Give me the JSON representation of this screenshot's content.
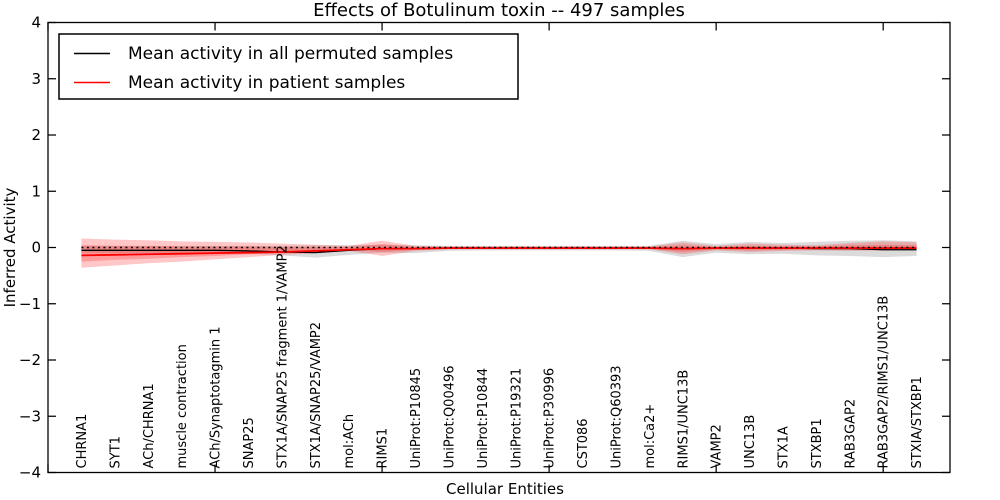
{
  "figure": {
    "background": "#ffffff"
  },
  "legend": {
    "items": [
      {
        "label": "Mean activity in all permuted samples",
        "color": "#000000"
      },
      {
        "label": "Mean activity in patient samples",
        "color": "#ff0000"
      }
    ]
  },
  "chart_data": {
    "type": "line",
    "title": "Effects of Botulinum toxin -- 497 samples",
    "xlabel": "Cellular Entities",
    "ylabel": "Inferred Activity",
    "ylim": [
      -4,
      4
    ],
    "grid": false,
    "legend_position": "upper left",
    "y_ticks": [
      4,
      3,
      2,
      1,
      0,
      -1,
      -2,
      -3,
      -4
    ],
    "y_tick_labels": [
      "4",
      "3",
      "2",
      "1",
      "0",
      "−1",
      "−2",
      "−3",
      "−4"
    ],
    "x_frame_tick_values": [
      0,
      5,
      10,
      15,
      20,
      25
    ],
    "x_axis_span": 27,
    "categories": [
      "CHRNA1",
      "SYT1",
      "ACh/CHRNA1",
      "muscle contraction",
      "ACh/Synaptotagmin 1",
      "SNAP25",
      "STX1A/SNAP25 fragment 1/VAMP2",
      "STX1A/SNAP25/VAMP2",
      "mol:ACh",
      "RIMS1",
      "UniProt:P10845",
      "UniProt:Q00496",
      "UniProt:P10844",
      "UniProt:P19321",
      "UniProt:P30996",
      "CST086",
      "UniProt:Q60393",
      "mol:Ca2+",
      "RIMS1/UNC13B",
      "VAMP2",
      "UNC13B",
      "STX1A",
      "STXBP1",
      "RAB3GAP2",
      "RAB3GAP2/RIMS1/UNC13B",
      "STXIA/STXBP1"
    ],
    "series": [
      {
        "name": "Mean activity in all permuted samples",
        "color": "#000000",
        "style": "solid",
        "width": 1.3,
        "values": [
          -0.05,
          -0.05,
          -0.05,
          -0.05,
          -0.05,
          -0.06,
          -0.08,
          -0.09,
          -0.05,
          -0.02,
          -0.02,
          -0.01,
          -0.01,
          -0.01,
          -0.01,
          -0.01,
          -0.01,
          -0.01,
          -0.02,
          -0.01,
          -0.01,
          -0.01,
          -0.02,
          -0.02,
          -0.04,
          -0.04
        ]
      },
      {
        "name": "Mean activity in patient samples",
        "color": "#ff0000",
        "style": "solid",
        "width": 1.8,
        "values": [
          -0.14,
          -0.13,
          -0.12,
          -0.11,
          -0.1,
          -0.09,
          -0.08,
          -0.06,
          -0.04,
          -0.02,
          -0.02,
          -0.01,
          -0.01,
          -0.01,
          -0.01,
          -0.01,
          -0.01,
          -0.01,
          -0.02,
          -0.01,
          -0.01,
          -0.01,
          -0.01,
          -0.01,
          -0.01,
          -0.01
        ]
      },
      {
        "name": "zero-reference",
        "color": "#000000",
        "style": "dotted",
        "width": 1.6,
        "y": 0
      }
    ],
    "bands": [
      {
        "name": "permuted-range",
        "color": "#888888",
        "opacity": 0.3,
        "hi": [
          0.03,
          0.03,
          0.03,
          0.03,
          0.03,
          0.03,
          0.03,
          0.04,
          0.04,
          0.05,
          0.04,
          0.03,
          0.03,
          0.03,
          0.03,
          0.03,
          0.03,
          0.03,
          0.12,
          0.06,
          0.1,
          0.08,
          0.1,
          0.12,
          0.13,
          0.11
        ],
        "lo": [
          -0.1,
          -0.1,
          -0.1,
          -0.1,
          -0.1,
          -0.11,
          -0.14,
          -0.18,
          -0.13,
          -0.09,
          -0.1,
          -0.06,
          -0.05,
          -0.05,
          -0.05,
          -0.05,
          -0.05,
          -0.06,
          -0.17,
          -0.09,
          -0.12,
          -0.11,
          -0.14,
          -0.15,
          -0.17,
          -0.15
        ]
      },
      {
        "name": "patient-range-outer",
        "color": "#ff0000",
        "opacity": 0.22,
        "hi": [
          0.16,
          0.14,
          0.13,
          0.11,
          0.1,
          0.09,
          0.07,
          0.05,
          0.03,
          0.12,
          0.03,
          0.02,
          0.02,
          0.02,
          0.02,
          0.02,
          0.02,
          0.02,
          0.09,
          0.03,
          0.07,
          0.05,
          0.04,
          0.08,
          0.11,
          0.09
        ],
        "lo": [
          -0.36,
          -0.32,
          -0.28,
          -0.25,
          -0.21,
          -0.17,
          -0.13,
          -0.1,
          -0.06,
          -0.15,
          -0.06,
          -0.03,
          -0.03,
          -0.03,
          -0.03,
          -0.03,
          -0.03,
          -0.03,
          -0.12,
          -0.05,
          -0.08,
          -0.06,
          -0.05,
          -0.06,
          -0.05,
          -0.04
        ],
        "hi2": [
          0.04,
          0.03,
          0.03,
          0.02,
          0.02,
          0.02,
          0.01,
          0.01,
          0.01,
          0.06,
          0.01,
          0.01,
          0.01,
          0.01,
          0.01,
          0.01,
          0.01,
          0.01,
          0.04,
          0.01,
          0.03,
          0.02,
          0.02,
          0.04,
          0.05,
          0.04
        ],
        "lo2": [
          -0.25,
          -0.22,
          -0.2,
          -0.17,
          -0.15,
          -0.12,
          -0.1,
          -0.08,
          -0.04,
          -0.08,
          -0.04,
          -0.02,
          -0.02,
          -0.02,
          -0.02,
          -0.02,
          -0.02,
          -0.02,
          -0.08,
          -0.03,
          -0.05,
          -0.04,
          -0.03,
          -0.04,
          -0.04,
          -0.03
        ]
      }
    ]
  }
}
